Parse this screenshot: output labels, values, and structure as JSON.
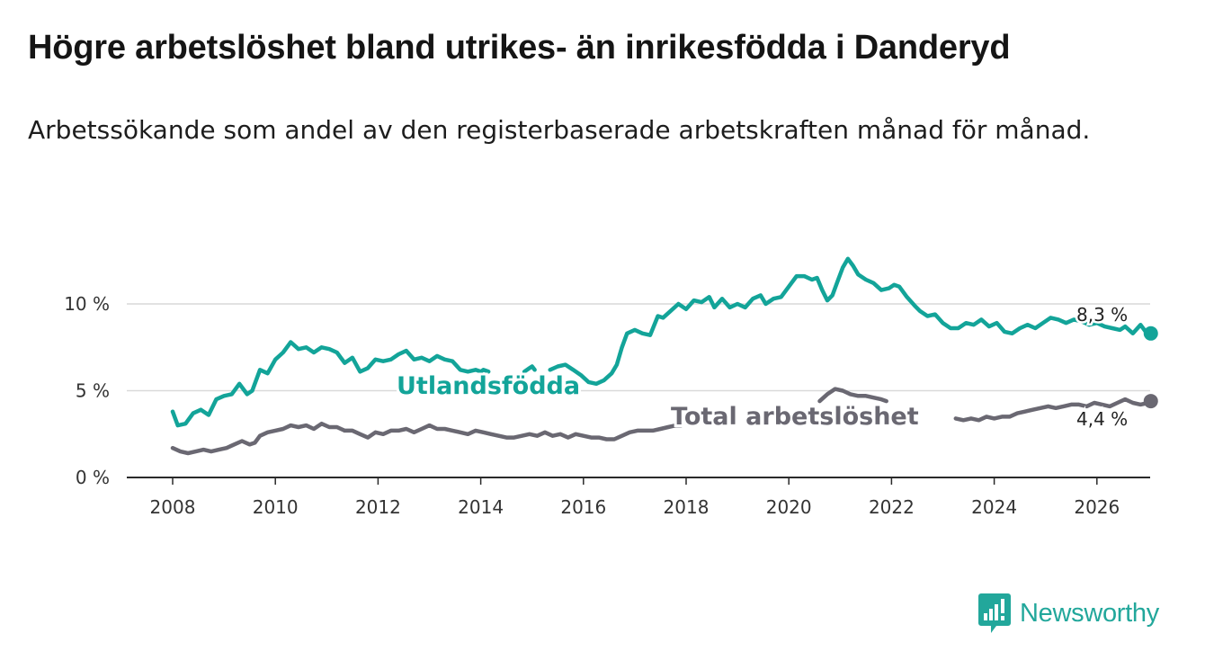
{
  "title": "Högre arbetslöshet bland utrikes- än inrikesfödda i Danderyd",
  "subtitle": "Arbetssökande som andel av den registerbaserade arbetskraften månad för månad.",
  "brand": {
    "name": "Newsworthy",
    "icon": "newsworthy-logo-icon",
    "color": "#22a79b"
  },
  "chart_data": {
    "type": "line",
    "title": "Högre arbetslöshet bland utrikes- än inrikesfödda i Danderyd",
    "subtitle": "Arbetssökande som andel av den registerbaserade arbetskraften månad för månad.",
    "xlabel": "",
    "ylabel": "",
    "xlim": [
      2006.8,
      2027.1
    ],
    "ylim": [
      0,
      13.4
    ],
    "grid": true,
    "y_ticks": [
      {
        "value": 0,
        "label": "0 %"
      },
      {
        "value": 5,
        "label": "5 %"
      },
      {
        "value": 10,
        "label": "10 %"
      }
    ],
    "x_ticks": [
      {
        "value": 2008,
        "label": "2008"
      },
      {
        "value": 2010,
        "label": "2010"
      },
      {
        "value": 2012,
        "label": "2012"
      },
      {
        "value": 2014,
        "label": "2014"
      },
      {
        "value": 2016,
        "label": "2016"
      },
      {
        "value": 2018,
        "label": "2018"
      },
      {
        "value": 2020,
        "label": "2020"
      },
      {
        "value": 2022,
        "label": "2022"
      },
      {
        "value": 2024,
        "label": "2024"
      },
      {
        "value": 2026,
        "label": "2026"
      }
    ],
    "series": [
      {
        "name": "Utlandsfödda",
        "color": "#13a499",
        "label_value": "8,3 %",
        "segments": [
          [
            [
              2008.0,
              3.8
            ],
            [
              2008.1,
              3.0
            ],
            [
              2008.25,
              3.1
            ],
            [
              2008.4,
              3.7
            ],
            [
              2008.55,
              3.9
            ],
            [
              2008.7,
              3.6
            ],
            [
              2008.85,
              4.5
            ],
            [
              2009.0,
              4.7
            ],
            [
              2009.15,
              4.8
            ],
            [
              2009.3,
              5.4
            ],
            [
              2009.45,
              4.8
            ],
            [
              2009.55,
              5.0
            ],
            [
              2009.7,
              6.2
            ],
            [
              2009.85,
              6.0
            ],
            [
              2010.0,
              6.8
            ],
            [
              2010.15,
              7.2
            ],
            [
              2010.3,
              7.8
            ],
            [
              2010.45,
              7.4
            ],
            [
              2010.6,
              7.5
            ],
            [
              2010.75,
              7.2
            ],
            [
              2010.9,
              7.5
            ],
            [
              2011.05,
              7.4
            ],
            [
              2011.2,
              7.2
            ],
            [
              2011.35,
              6.6
            ],
            [
              2011.5,
              6.9
            ],
            [
              2011.65,
              6.1
            ],
            [
              2011.8,
              6.3
            ],
            [
              2011.95,
              6.8
            ],
            [
              2012.1,
              6.7
            ],
            [
              2012.25,
              6.8
            ],
            [
              2012.4,
              7.1
            ],
            [
              2012.55,
              7.3
            ],
            [
              2012.7,
              6.8
            ],
            [
              2012.85,
              6.9
            ],
            [
              2013.0,
              6.7
            ],
            [
              2013.15,
              7.0
            ],
            [
              2013.3,
              6.8
            ],
            [
              2013.45,
              6.7
            ],
            [
              2013.6,
              6.2
            ],
            [
              2013.75,
              6.1
            ],
            [
              2013.9,
              6.2
            ],
            [
              2014.0,
              6.1
            ],
            [
              2014.05,
              6.2
            ],
            [
              2014.15,
              6.1
            ]
          ],
          [
            [
              2014.85,
              6.1
            ],
            [
              2014.95,
              6.3
            ],
            [
              2015.0,
              6.4
            ],
            [
              2015.05,
              6.2
            ]
          ],
          [
            [
              2015.35,
              6.2
            ],
            [
              2015.5,
              6.4
            ],
            [
              2015.65,
              6.5
            ],
            [
              2015.8,
              6.2
            ],
            [
              2015.95,
              5.9
            ],
            [
              2016.1,
              5.5
            ],
            [
              2016.25,
              5.4
            ],
            [
              2016.4,
              5.6
            ],
            [
              2016.55,
              6.0
            ],
            [
              2016.65,
              6.5
            ],
            [
              2016.75,
              7.5
            ],
            [
              2016.85,
              8.3
            ],
            [
              2017.0,
              8.5
            ],
            [
              2017.15,
              8.3
            ],
            [
              2017.3,
              8.2
            ],
            [
              2017.45,
              9.3
            ],
            [
              2017.55,
              9.2
            ],
            [
              2017.7,
              9.6
            ],
            [
              2017.85,
              10.0
            ],
            [
              2018.0,
              9.7
            ],
            [
              2018.15,
              10.2
            ],
            [
              2018.3,
              10.1
            ],
            [
              2018.45,
              10.4
            ],
            [
              2018.55,
              9.8
            ],
            [
              2018.7,
              10.3
            ],
            [
              2018.85,
              9.8
            ],
            [
              2019.0,
              10.0
            ],
            [
              2019.15,
              9.8
            ],
            [
              2019.3,
              10.3
            ],
            [
              2019.45,
              10.5
            ],
            [
              2019.55,
              10.0
            ],
            [
              2019.7,
              10.3
            ],
            [
              2019.85,
              10.4
            ],
            [
              2020.0,
              11.0
            ],
            [
              2020.15,
              11.6
            ],
            [
              2020.3,
              11.6
            ],
            [
              2020.45,
              11.4
            ],
            [
              2020.55,
              11.5
            ],
            [
              2020.65,
              10.8
            ],
            [
              2020.75,
              10.2
            ],
            [
              2020.85,
              10.5
            ],
            [
              2020.95,
              11.3
            ],
            [
              2021.05,
              12.1
            ],
            [
              2021.15,
              12.6
            ],
            [
              2021.25,
              12.2
            ],
            [
              2021.35,
              11.7
            ],
            [
              2021.5,
              11.4
            ],
            [
              2021.65,
              11.2
            ],
            [
              2021.8,
              10.8
            ],
            [
              2021.95,
              10.9
            ],
            [
              2022.05,
              11.1
            ],
            [
              2022.15,
              11.0
            ],
            [
              2022.3,
              10.4
            ],
            [
              2022.45,
              9.9
            ],
            [
              2022.55,
              9.6
            ],
            [
              2022.7,
              9.3
            ],
            [
              2022.85,
              9.4
            ],
            [
              2023.0,
              8.9
            ],
            [
              2023.15,
              8.6
            ],
            [
              2023.3,
              8.6
            ],
            [
              2023.45,
              8.9
            ],
            [
              2023.6,
              8.8
            ],
            [
              2023.75,
              9.1
            ],
            [
              2023.9,
              8.7
            ],
            [
              2024.05,
              8.9
            ],
            [
              2024.2,
              8.4
            ],
            [
              2024.35,
              8.3
            ],
            [
              2024.5,
              8.6
            ],
            [
              2024.65,
              8.8
            ],
            [
              2024.8,
              8.6
            ],
            [
              2024.95,
              8.9
            ],
            [
              2025.1,
              9.2
            ],
            [
              2025.25,
              9.1
            ],
            [
              2025.4,
              8.9
            ],
            [
              2025.55,
              9.1
            ],
            [
              2025.7,
              9.0
            ],
            [
              2025.85,
              8.8
            ],
            [
              2026.0,
              8.9
            ],
            [
              2026.15,
              8.7
            ],
            [
              2026.3,
              8.6
            ],
            [
              2026.45,
              8.5
            ],
            [
              2026.55,
              8.7
            ],
            [
              2026.7,
              8.3
            ],
            [
              2026.85,
              8.8
            ],
            [
              2026.95,
              8.4
            ],
            [
              2027.05,
              8.3
            ]
          ]
        ]
      },
      {
        "name": "Total arbetslöshet",
        "color": "#6a6872",
        "label_value": "4,4 %",
        "segments": [
          [
            [
              2008.0,
              1.7
            ],
            [
              2008.15,
              1.5
            ],
            [
              2008.3,
              1.4
            ],
            [
              2008.45,
              1.5
            ],
            [
              2008.6,
              1.6
            ],
            [
              2008.75,
              1.5
            ],
            [
              2008.9,
              1.6
            ],
            [
              2009.05,
              1.7
            ],
            [
              2009.2,
              1.9
            ],
            [
              2009.35,
              2.1
            ],
            [
              2009.5,
              1.9
            ],
            [
              2009.6,
              2.0
            ],
            [
              2009.7,
              2.4
            ],
            [
              2009.85,
              2.6
            ],
            [
              2010.0,
              2.7
            ],
            [
              2010.15,
              2.8
            ],
            [
              2010.3,
              3.0
            ],
            [
              2010.45,
              2.9
            ],
            [
              2010.6,
              3.0
            ],
            [
              2010.75,
              2.8
            ],
            [
              2010.9,
              3.1
            ],
            [
              2011.05,
              2.9
            ],
            [
              2011.2,
              2.9
            ],
            [
              2011.35,
              2.7
            ],
            [
              2011.5,
              2.7
            ],
            [
              2011.65,
              2.5
            ],
            [
              2011.8,
              2.3
            ],
            [
              2011.95,
              2.6
            ],
            [
              2012.1,
              2.5
            ],
            [
              2012.25,
              2.7
            ],
            [
              2012.4,
              2.7
            ],
            [
              2012.55,
              2.8
            ],
            [
              2012.7,
              2.6
            ],
            [
              2012.85,
              2.8
            ],
            [
              2013.0,
              3.0
            ],
            [
              2013.15,
              2.8
            ],
            [
              2013.3,
              2.8
            ],
            [
              2013.45,
              2.7
            ],
            [
              2013.6,
              2.6
            ],
            [
              2013.75,
              2.5
            ],
            [
              2013.9,
              2.7
            ],
            [
              2014.05,
              2.6
            ],
            [
              2014.2,
              2.5
            ],
            [
              2014.35,
              2.4
            ],
            [
              2014.5,
              2.3
            ],
            [
              2014.65,
              2.3
            ],
            [
              2014.8,
              2.4
            ],
            [
              2014.95,
              2.5
            ],
            [
              2015.1,
              2.4
            ],
            [
              2015.25,
              2.6
            ],
            [
              2015.4,
              2.4
            ],
            [
              2015.55,
              2.5
            ],
            [
              2015.7,
              2.3
            ],
            [
              2015.85,
              2.5
            ],
            [
              2016.0,
              2.4
            ],
            [
              2016.15,
              2.3
            ],
            [
              2016.3,
              2.3
            ],
            [
              2016.45,
              2.2
            ],
            [
              2016.6,
              2.2
            ],
            [
              2016.75,
              2.4
            ],
            [
              2016.9,
              2.6
            ],
            [
              2017.05,
              2.7
            ],
            [
              2017.2,
              2.7
            ],
            [
              2017.35,
              2.7
            ],
            [
              2017.5,
              2.8
            ],
            [
              2017.65,
              2.9
            ],
            [
              2017.8,
              3.0
            ],
            [
              2017.9,
              3.0
            ]
          ],
          [
            [
              2020.6,
              4.4
            ],
            [
              2020.75,
              4.8
            ],
            [
              2020.9,
              5.1
            ],
            [
              2021.05,
              5.0
            ],
            [
              2021.2,
              4.8
            ],
            [
              2021.35,
              4.7
            ],
            [
              2021.5,
              4.7
            ],
            [
              2021.65,
              4.6
            ],
            [
              2021.8,
              4.5
            ],
            [
              2021.9,
              4.4
            ]
          ],
          [
            [
              2023.25,
              3.4
            ],
            [
              2023.4,
              3.3
            ],
            [
              2023.55,
              3.4
            ],
            [
              2023.7,
              3.3
            ],
            [
              2023.85,
              3.5
            ],
            [
              2024.0,
              3.4
            ],
            [
              2024.15,
              3.5
            ],
            [
              2024.3,
              3.5
            ],
            [
              2024.45,
              3.7
            ],
            [
              2024.6,
              3.8
            ],
            [
              2024.75,
              3.9
            ],
            [
              2024.9,
              4.0
            ],
            [
              2025.05,
              4.1
            ],
            [
              2025.2,
              4.0
            ],
            [
              2025.35,
              4.1
            ],
            [
              2025.5,
              4.2
            ],
            [
              2025.65,
              4.2
            ],
            [
              2025.8,
              4.1
            ],
            [
              2025.95,
              4.3
            ],
            [
              2026.1,
              4.2
            ],
            [
              2026.25,
              4.1
            ],
            [
              2026.4,
              4.3
            ],
            [
              2026.55,
              4.5
            ],
            [
              2026.7,
              4.3
            ],
            [
              2026.85,
              4.2
            ],
            [
              2027.0,
              4.3
            ],
            [
              2027.05,
              4.4
            ]
          ]
        ]
      }
    ]
  }
}
